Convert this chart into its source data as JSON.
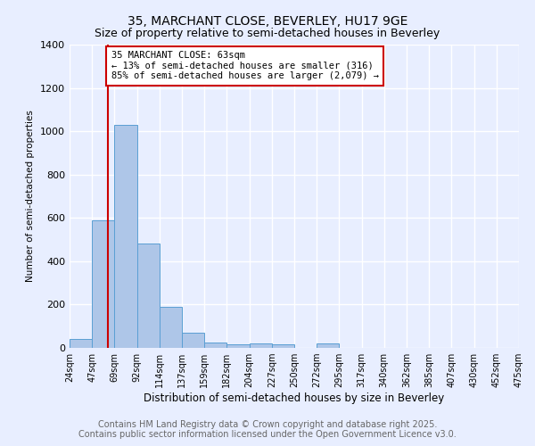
{
  "title_line1": "35, MARCHANT CLOSE, BEVERLEY, HU17 9GE",
  "title_line2": "Size of property relative to semi-detached houses in Beverley",
  "xlabel": "Distribution of semi-detached houses by size in Beverley",
  "ylabel": "Number of semi-detached properties",
  "footer_line1": "Contains HM Land Registry data © Crown copyright and database right 2025.",
  "footer_line2": "Contains public sector information licensed under the Open Government Licence v3.0.",
  "bin_labels": [
    "24sqm",
    "47sqm",
    "69sqm",
    "92sqm",
    "114sqm",
    "137sqm",
    "159sqm",
    "182sqm",
    "204sqm",
    "227sqm",
    "250sqm",
    "272sqm",
    "295sqm",
    "317sqm",
    "340sqm",
    "362sqm",
    "385sqm",
    "407sqm",
    "430sqm",
    "452sqm",
    "475sqm"
  ],
  "bar_values": [
    40,
    590,
    1030,
    480,
    190,
    70,
    25,
    15,
    20,
    15,
    0,
    20,
    0,
    0,
    0,
    0,
    0,
    0,
    0,
    0
  ],
  "bar_color": "#aec6e8",
  "bar_edge_color": "#5a9fd4",
  "property_size_bin": 1.7,
  "red_line_color": "#cc0000",
  "annotation_text": "35 MARCHANT CLOSE: 63sqm\n← 13% of semi-detached houses are smaller (316)\n85% of semi-detached houses are larger (2,079) →",
  "annotation_box_color": "white",
  "annotation_box_edge_color": "#cc0000",
  "ylim": [
    0,
    1400
  ],
  "yticks": [
    0,
    200,
    400,
    600,
    800,
    1000,
    1200,
    1400
  ],
  "bg_color": "#e8eeff",
  "grid_color": "white",
  "title_fontsize": 10,
  "subtitle_fontsize": 9,
  "footer_fontsize": 7,
  "n_bars": 20
}
